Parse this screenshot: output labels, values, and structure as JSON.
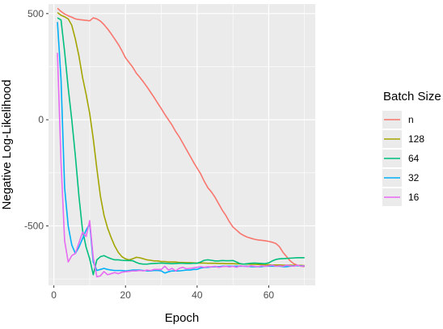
{
  "chart_data": {
    "type": "line",
    "xlabel": "Epoch",
    "ylabel": "Negative Log-Likelihood",
    "xlim": [
      -1.5,
      73
    ],
    "ylim": [
      -780,
      545
    ],
    "x_ticks": [
      0,
      20,
      40,
      60
    ],
    "x_tick_labels": [
      "0",
      "20",
      "40",
      "60"
    ],
    "y_ticks": [
      -500,
      0,
      500
    ],
    "y_tick_labels": [
      "-500",
      "0",
      "500"
    ],
    "grid": true,
    "panel_background": "#ebebeb",
    "legend": {
      "title": "Batch Size",
      "position": "right"
    },
    "series": [
      {
        "name": "n",
        "color": "#F8766D",
        "x": [
          1,
          2,
          3,
          4,
          5,
          6,
          7,
          8,
          9,
          10,
          11,
          12,
          13,
          14,
          15,
          16,
          17,
          18,
          19,
          20,
          21,
          22,
          23,
          24,
          25,
          26,
          27,
          28,
          29,
          30,
          31,
          32,
          33,
          34,
          35,
          36,
          37,
          38,
          39,
          40,
          41,
          42,
          43,
          44,
          45,
          46,
          47,
          48,
          49,
          50,
          51,
          52,
          53,
          54,
          55,
          56,
          57,
          58,
          59,
          60,
          61,
          62,
          63,
          64,
          65,
          66,
          67,
          68,
          69,
          70
        ],
        "values": [
          525,
          510,
          498,
          490,
          483,
          475,
          472,
          470,
          468,
          466,
          480,
          475,
          465,
          448,
          428,
          405,
          380,
          355,
          325,
          292,
          270,
          248,
          220,
          200,
          178,
          155,
          130,
          105,
          78,
          52,
          25,
          0,
          -25,
          -55,
          -80,
          -110,
          -140,
          -170,
          -200,
          -228,
          -255,
          -290,
          -320,
          -340,
          -365,
          -395,
          -425,
          -450,
          -480,
          -505,
          -520,
          -535,
          -545,
          -553,
          -558,
          -563,
          -566,
          -568,
          -570,
          -573,
          -577,
          -583,
          -598,
          -625,
          -645,
          -665,
          -678,
          -685,
          -690,
          -692
        ]
      },
      {
        "name": "128",
        "color": "#A3A500",
        "x": [
          1,
          2,
          3,
          4,
          5,
          6,
          7,
          8,
          9,
          10,
          11,
          12,
          13,
          14,
          15,
          16,
          17,
          18,
          19,
          20,
          21,
          22,
          23,
          24,
          25,
          26,
          27,
          28,
          29,
          30,
          31,
          32,
          33,
          34,
          35,
          36,
          37,
          38,
          39,
          40,
          41,
          42,
          43,
          44,
          45,
          46,
          47,
          48,
          49,
          50,
          51,
          52,
          53,
          54,
          55,
          56,
          57,
          58,
          59,
          60,
          61,
          62,
          63,
          64,
          65,
          66,
          67,
          68,
          69,
          70
        ],
        "values": [
          505,
          492,
          485,
          475,
          445,
          380,
          300,
          200,
          120,
          30,
          -90,
          -230,
          -360,
          -450,
          -510,
          -555,
          -595,
          -625,
          -645,
          -655,
          -660,
          -655,
          -648,
          -650,
          -655,
          -660,
          -662,
          -665,
          -665,
          -668,
          -668,
          -670,
          -670,
          -670,
          -672,
          -672,
          -673,
          -673,
          -674,
          -675,
          -675,
          -675,
          -676,
          -676,
          -676,
          -677,
          -677,
          -678,
          -678,
          -678,
          -679,
          -679,
          -680,
          -680,
          -681,
          -681,
          -682,
          -682,
          -683,
          -683,
          -684,
          -684,
          -684,
          -685,
          -685,
          -685,
          -686,
          -686,
          -686,
          -687
        ]
      },
      {
        "name": "64",
        "color": "#00BF7D",
        "x": [
          1,
          2,
          3,
          4,
          5,
          6,
          7,
          8,
          9,
          10,
          11,
          12,
          13,
          14,
          15,
          16,
          17,
          18,
          19,
          20,
          21,
          22,
          23,
          24,
          25,
          26,
          27,
          28,
          29,
          30,
          31,
          32,
          33,
          34,
          35,
          36,
          37,
          38,
          39,
          40,
          41,
          42,
          43,
          44,
          45,
          46,
          47,
          48,
          49,
          50,
          51,
          52,
          53,
          54,
          55,
          56,
          57,
          58,
          59,
          60,
          61,
          62,
          63,
          64,
          65,
          66,
          67,
          68,
          69,
          70
        ],
        "values": [
          480,
          470,
          320,
          150,
          0,
          -170,
          -360,
          -520,
          -600,
          -655,
          -730,
          -660,
          -645,
          -640,
          -648,
          -655,
          -660,
          -660,
          -662,
          -663,
          -663,
          -664,
          -672,
          -678,
          -680,
          -680,
          -678,
          -677,
          -676,
          -675,
          -676,
          -677,
          -678,
          -677,
          -676,
          -676,
          -677,
          -677,
          -676,
          -676,
          -670,
          -662,
          -660,
          -662,
          -665,
          -665,
          -663,
          -664,
          -664,
          -663,
          -670,
          -678,
          -680,
          -678,
          -676,
          -675,
          -676,
          -677,
          -678,
          -674,
          -665,
          -658,
          -655,
          -654,
          -653,
          -652,
          -651,
          -650,
          -650,
          -650
        ]
      },
      {
        "name": "32",
        "color": "#00B0F6",
        "x": [
          1,
          2,
          3,
          4,
          5,
          6,
          7,
          8,
          9,
          10,
          11,
          12,
          13,
          14,
          15,
          16,
          17,
          18,
          19,
          20,
          21,
          22,
          23,
          24,
          25,
          26,
          27,
          28,
          29,
          30,
          31,
          32,
          33,
          34,
          35,
          36,
          37,
          38,
          39,
          40,
          41,
          42,
          43,
          44,
          45,
          46,
          47,
          48,
          49,
          50,
          51,
          52,
          53,
          54,
          55,
          56,
          57,
          58,
          59,
          60,
          61,
          62,
          63,
          64,
          65,
          66,
          67,
          68,
          69,
          70
        ],
        "values": [
          460,
          190,
          -320,
          -500,
          -590,
          -630,
          -600,
          -560,
          -520,
          -490,
          -670,
          -710,
          -705,
          -700,
          -705,
          -708,
          -710,
          -710,
          -710,
          -712,
          -710,
          -708,
          -708,
          -708,
          -710,
          -712,
          -712,
          -710,
          -710,
          -712,
          -722,
          -716,
          -712,
          -712,
          -712,
          -710,
          -708,
          -708,
          -705,
          -705,
          -698,
          -696,
          -695,
          -693,
          -692,
          -692,
          -690,
          -690,
          -690,
          -690,
          -690,
          -690,
          -690,
          -690,
          -692,
          -692,
          -692,
          -692,
          -690,
          -690,
          -690,
          -690,
          -690,
          -692,
          -692,
          -690,
          -688,
          -688,
          -688,
          -690
        ]
      },
      {
        "name": "16",
        "color": "#E76BF3",
        "x": [
          1,
          2,
          3,
          4,
          5,
          6,
          7,
          8,
          9,
          10,
          11,
          12,
          13,
          14,
          15,
          16,
          17,
          18,
          19,
          20,
          21,
          22,
          23,
          24,
          25,
          26,
          27,
          28,
          29,
          30,
          31,
          32,
          33,
          34,
          35,
          36,
          37,
          38,
          39,
          40,
          41,
          42,
          43,
          44,
          45,
          46,
          47,
          48,
          49,
          50,
          51,
          52,
          53,
          54,
          55,
          56,
          57,
          58,
          59,
          60,
          61,
          62,
          63,
          64,
          65,
          66,
          67,
          68,
          69,
          70
        ],
        "values": [
          315,
          -200,
          -570,
          -670,
          -640,
          -630,
          -580,
          -530,
          -550,
          -475,
          -650,
          -740,
          -735,
          -715,
          -730,
          -725,
          -720,
          -725,
          -718,
          -716,
          -714,
          -712,
          -712,
          -710,
          -712,
          -708,
          -710,
          -705,
          -705,
          -705,
          -690,
          -708,
          -700,
          -712,
          -700,
          -695,
          -702,
          -700,
          -698,
          -695,
          -692,
          -695,
          -692,
          -693,
          -690,
          -695,
          -692,
          -690,
          -693,
          -690,
          -695,
          -688,
          -690,
          -692,
          -688,
          -690,
          -692,
          -688,
          -690,
          -688,
          -685,
          -690,
          -688,
          -690,
          -685,
          -688,
          -690,
          -685,
          -690,
          -688
        ]
      }
    ]
  }
}
